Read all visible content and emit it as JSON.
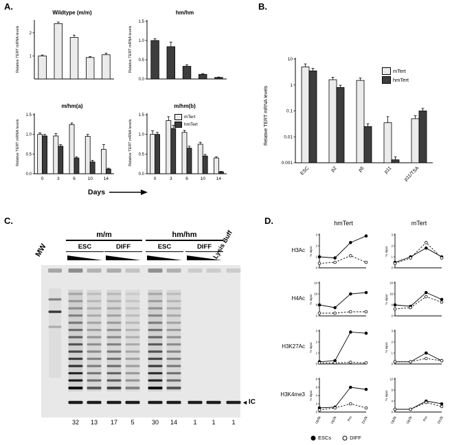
{
  "labels": {
    "a": "A.",
    "b": "B.",
    "c": "C.",
    "d": "D."
  },
  "chart_data": {
    "panel_a": {
      "ylabel": "Relative TERT mRNA levels",
      "xlabel": "Days",
      "legend": [
        "mTert",
        "hmTert"
      ],
      "colors": {
        "mTert": "#ebebeb",
        "hmTert": "#3d3d3d"
      },
      "charts": [
        {
          "type": "bar",
          "title": "Wildtype (m/m)",
          "categories": [
            "0",
            "3",
            "6",
            "10",
            "14"
          ],
          "show_xticks": false,
          "ymax": 2.5,
          "yticks": [
            "1",
            "2"
          ],
          "series": [
            {
              "name": "mTert",
              "color": "#ebebeb",
              "values": [
                1.0,
                2.4,
                1.8,
                0.93,
                1.05
              ],
              "errors": [
                0.04,
                0.07,
                0.1,
                0.04,
                0.07
              ]
            }
          ]
        },
        {
          "type": "bar",
          "title": "hm/hm",
          "categories": [
            "0",
            "3",
            "6",
            "10",
            "14"
          ],
          "show_xticks": false,
          "ymax": 1.5,
          "yticks": [
            "0.0",
            "0.5",
            "1.0",
            "1.5"
          ],
          "series": [
            {
              "name": "hmTert",
              "color": "#3d3d3d",
              "values": [
                1.0,
                0.84,
                0.33,
                0.12,
                0.04
              ],
              "errors": [
                0.05,
                0.12,
                0.04,
                0.02,
                0.01
              ]
            }
          ]
        },
        {
          "type": "bar",
          "title": "m/hm(a)",
          "categories": [
            "0",
            "3",
            "6",
            "10",
            "14"
          ],
          "show_xticks": true,
          "ymax": 1.5,
          "yticks": [
            "0.0",
            "0.5",
            "1.0",
            "1.5"
          ],
          "series": [
            {
              "name": "mTert",
              "color": "#ebebeb",
              "values": [
                1.0,
                0.96,
                1.25,
                0.95,
                0.62
              ],
              "errors": [
                0.04,
                0.06,
                0.04,
                0.05,
                0.12
              ]
            },
            {
              "name": "hmTert",
              "color": "#3d3d3d",
              "values": [
                0.96,
                0.7,
                0.4,
                0.3,
                0.12
              ],
              "errors": [
                0.04,
                0.04,
                0.03,
                0.04,
                0.02
              ]
            }
          ]
        },
        {
          "type": "bar",
          "title": "m/hm(b)",
          "categories": [
            "0",
            "3",
            "6",
            "10",
            "14"
          ],
          "show_xticks": true,
          "ymax": 1.5,
          "yticks": [
            "0.0",
            "0.5",
            "1.0",
            "1.5"
          ],
          "series": [
            {
              "name": "mTert",
              "color": "#ebebeb",
              "values": [
                1.0,
                1.35,
                1.05,
                0.75,
                0.4
              ],
              "errors": [
                0.09,
                0.1,
                0.05,
                0.05,
                0.03
              ]
            },
            {
              "name": "hmTert",
              "color": "#3d3d3d",
              "values": [
                1.0,
                1.15,
                0.65,
                0.45,
                0.05
              ],
              "errors": [
                0.05,
                0.08,
                0.05,
                0.04,
                0.01
              ]
            }
          ]
        }
      ]
    },
    "panel_b": {
      "type": "bar",
      "ylabel": "Relative TERT mRNA levels",
      "categories": [
        "ESC",
        "p2",
        "p5",
        "p11",
        "p11/TSA"
      ],
      "log": true,
      "ymin": 0.001,
      "ymax": 10,
      "yticks": [
        "10",
        "1",
        "0.1",
        "0.01",
        "0.001"
      ],
      "series": [
        {
          "name": "mTert",
          "color": "#ebebeb",
          "values": [
            5,
            1.6,
            1.5,
            0.035,
            0.05
          ],
          "errors": [
            1.5,
            0.4,
            0.35,
            0.025,
            0.015
          ]
        },
        {
          "name": "hmTert",
          "color": "#3d3d3d",
          "values": [
            3.5,
            0.8,
            0.025,
            0.0013,
            0.1
          ],
          "errors": [
            0.9,
            0.18,
            0.007,
            0.0004,
            0.025
          ]
        }
      ]
    },
    "panel_d": {
      "col_headers": [
        "hmTert",
        "mTert"
      ],
      "row_labels": [
        "H3Ac",
        "H4Ac",
        "H3K27Ac",
        "H3K4me3"
      ],
      "ylabel": "% Input",
      "x": [
        "Up5k",
        "Up2k",
        "Pro",
        "Dn2k"
      ],
      "legend": [
        {
          "name": "ESCs",
          "marker": "filled"
        },
        {
          "name": "DIFF",
          "marker": "open"
        }
      ],
      "plots": [
        {
          "row": "H3Ac",
          "col": "hmTert",
          "ymax": 3,
          "yticks": [
            "0",
            "1",
            "2",
            "3"
          ],
          "escs": [
            1.0,
            0.9,
            2.3,
            2.9
          ],
          "diff": [
            0.4,
            0.5,
            1.1,
            0.5
          ]
        },
        {
          "row": "H3Ac",
          "col": "mTert",
          "ymax": 3,
          "yticks": [
            "0",
            "1",
            "2",
            "3"
          ],
          "escs": [
            0.5,
            1.0,
            1.8,
            1.0
          ],
          "diff": [
            0.4,
            0.9,
            2.3,
            0.9
          ]
        },
        {
          "row": "H4Ac",
          "col": "hmTert",
          "ymax": 24,
          "yticks": [
            "0",
            "8",
            "16",
            "24"
          ],
          "escs": [
            8,
            6,
            16,
            17
          ],
          "diff": [
            2,
            2,
            3,
            3
          ]
        },
        {
          "row": "H4Ac",
          "col": "mTert",
          "ymax": 24,
          "yticks": [
            "0",
            "8",
            "16",
            "24"
          ],
          "escs": [
            8,
            7,
            17,
            12
          ],
          "diff": [
            5,
            6,
            14,
            10
          ]
        },
        {
          "row": "H3K27Ac",
          "col": "hmTert",
          "ymax": 3,
          "yticks": [
            "0",
            "1",
            "2",
            "3"
          ],
          "escs": [
            0.2,
            0.3,
            2.9,
            2.8
          ],
          "diff": [
            0.1,
            0.1,
            0.15,
            0.1
          ]
        },
        {
          "row": "H3K27Ac",
          "col": "mTert",
          "ymax": 3,
          "yticks": [
            "0",
            "1",
            "2",
            "3"
          ],
          "escs": [
            0.2,
            0.2,
            1.0,
            0.3
          ],
          "diff": [
            0.2,
            0.2,
            0.5,
            0.3
          ]
        },
        {
          "row": "H3K4me3",
          "col": "hmTert",
          "ymax": 8,
          "yticks": [
            "0",
            "2",
            "4",
            "6",
            "8"
          ],
          "escs": [
            1.0,
            1.2,
            6.0,
            5.5
          ],
          "diff": [
            0.5,
            1.0,
            2.0,
            1.0
          ]
        },
        {
          "row": "H3K4me3",
          "col": "mTert",
          "ymax": 12,
          "yticks": [
            "0",
            "4",
            "8",
            "12"
          ],
          "escs": [
            1,
            1,
            4,
            3
          ],
          "diff": [
            1,
            1,
            3.5,
            2
          ]
        }
      ]
    }
  },
  "panel_c": {
    "mw_label": "MW",
    "groups": [
      {
        "name": "m/m",
        "subgroups": [
          "ESC",
          "DIFF"
        ]
      },
      {
        "name": "hm/hm",
        "subgroups": [
          "ESC",
          "DIFF"
        ]
      }
    ],
    "lysis_label": "Lysis Buff",
    "ic_label": "IC",
    "lane_numbers": [
      "32",
      "13",
      "17",
      "5",
      "30",
      "14",
      "1",
      "1",
      "1"
    ]
  }
}
